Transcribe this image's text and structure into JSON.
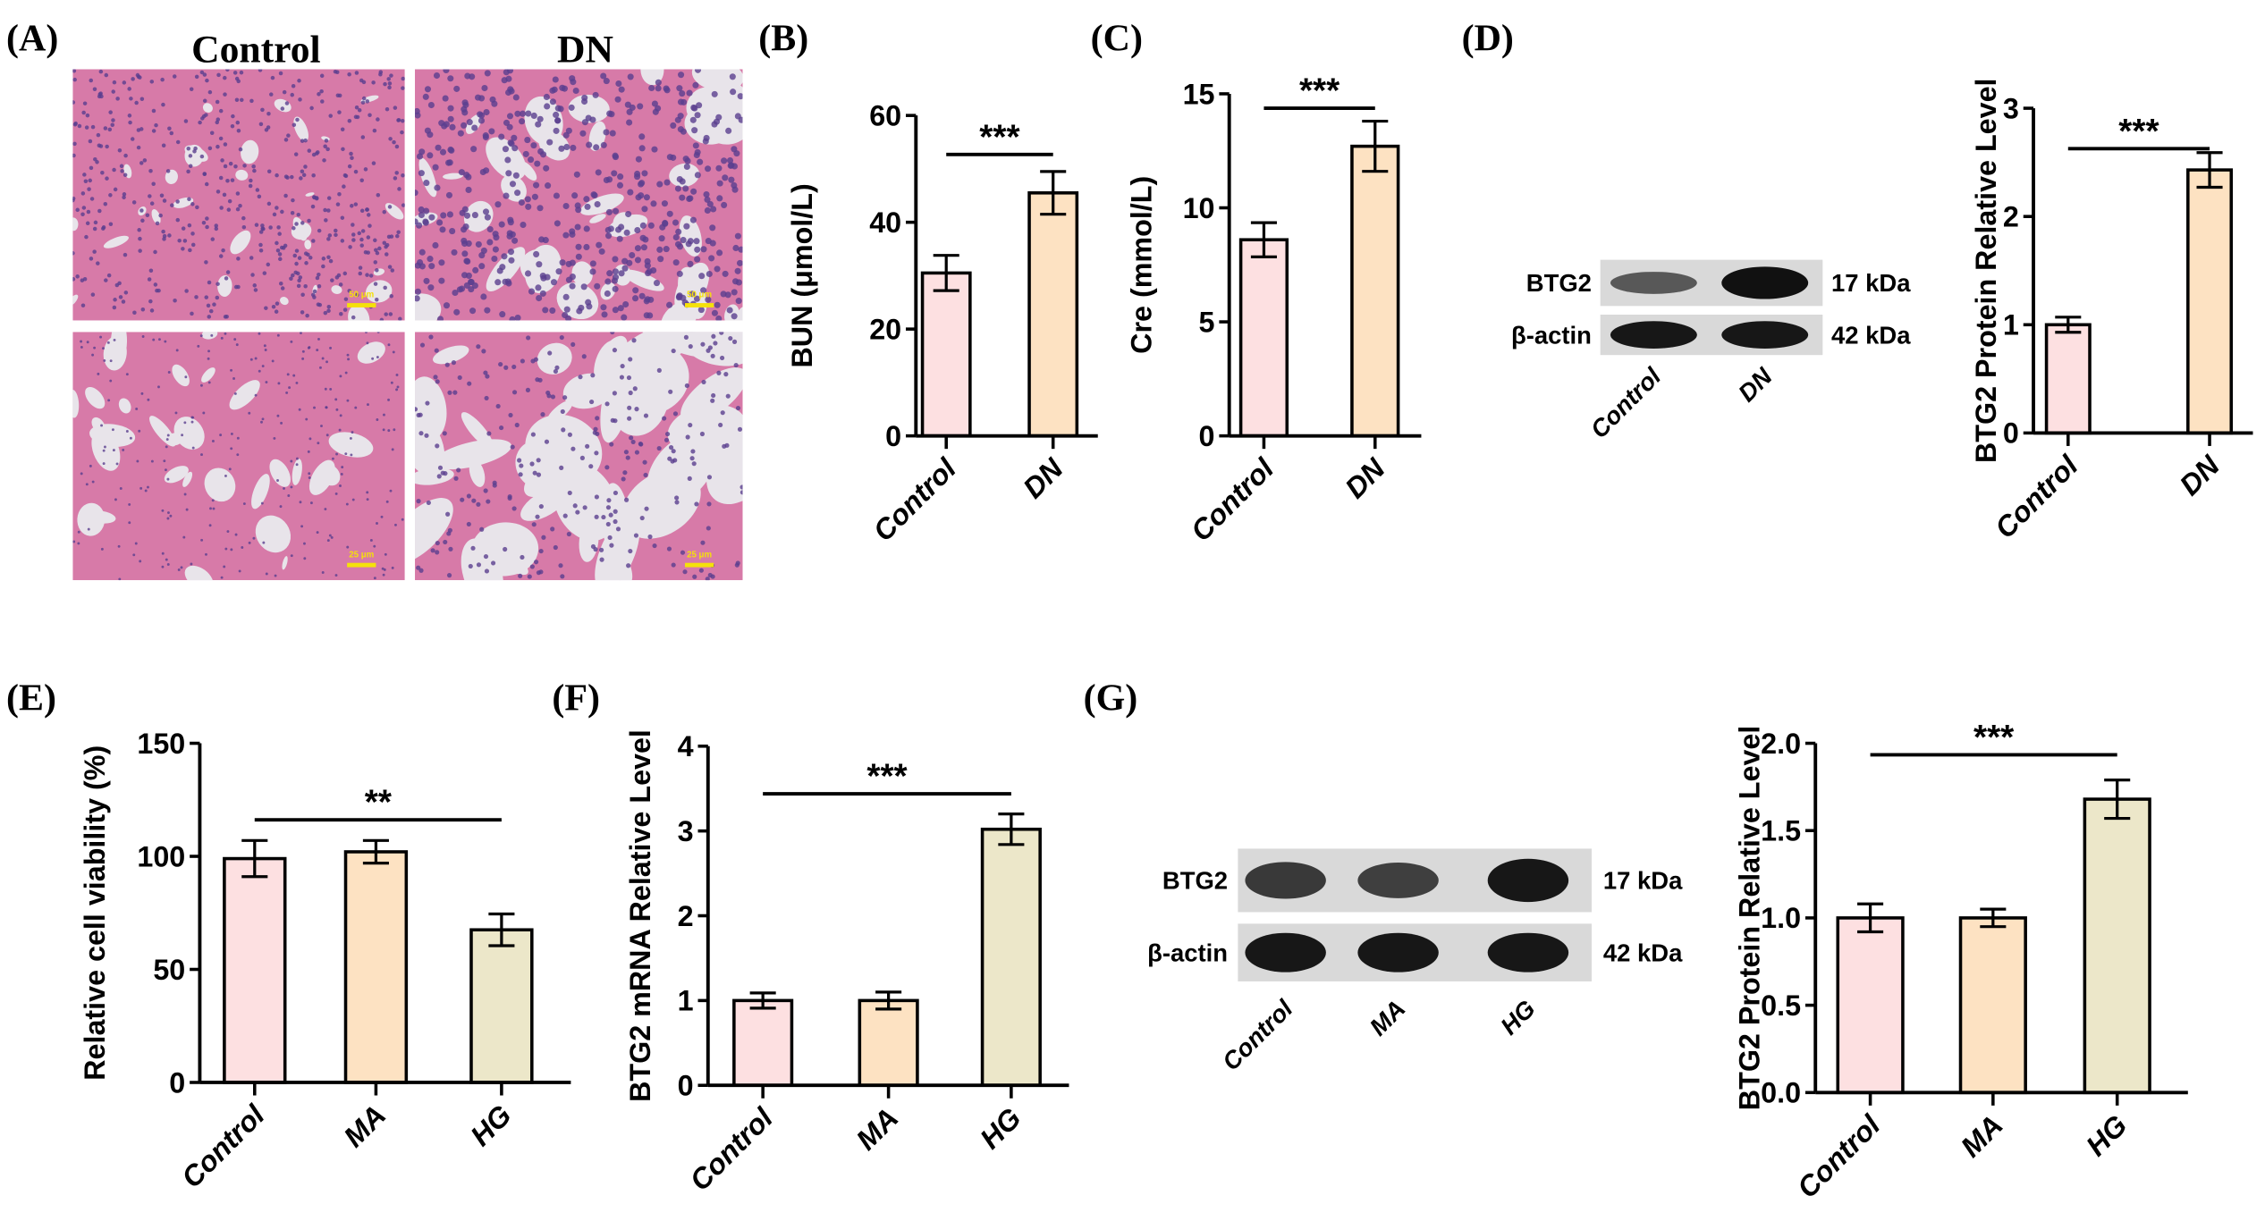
{
  "panel_labels": [
    "(A)",
    "(B)",
    "(C)",
    "(D)",
    "(E)",
    "(F)",
    "(G)"
  ],
  "histology": {
    "columns": [
      "Control",
      "DN"
    ],
    "scale_bars": [
      "50 μm",
      "50 μm",
      "25 μm",
      "25 μm"
    ]
  },
  "blots": [
    {
      "panel": "D",
      "rows": [
        {
          "label": "BTG2",
          "size": "17 kDa",
          "intensity": [
            0.45,
            1.0
          ]
        },
        {
          "label": "β-actin",
          "size": "42 kDa",
          "intensity": [
            0.95,
            0.95
          ]
        }
      ],
      "lanes": [
        "Control",
        "DN"
      ]
    },
    {
      "panel": "G",
      "rows": [
        {
          "label": "BTG2",
          "size": "17 kDa",
          "intensity": [
            0.7,
            0.65,
            0.95
          ]
        },
        {
          "label": "β-actin",
          "size": "42 kDa",
          "intensity": [
            0.95,
            0.95,
            0.95
          ]
        }
      ],
      "lanes": [
        "Control",
        "MA",
        "HG"
      ]
    }
  ],
  "colors": {
    "Control": "#fde0e1",
    "DN": "#fde2c2",
    "MA": "#fde2c2",
    "HG": "#ece7c9"
  },
  "chart_data": [
    {
      "panel": "B",
      "type": "bar",
      "categories": [
        "Control",
        "DN"
      ],
      "values": [
        30.5,
        45.5
      ],
      "errors": [
        3.3,
        4.0
      ],
      "ylabel": "BUN (μmol/L)",
      "ylim": [
        0,
        60
      ],
      "yticks": [
        "0",
        "20",
        "40",
        "60"
      ],
      "significance": {
        "from": 0,
        "to": 1,
        "label": "***"
      }
    },
    {
      "panel": "C",
      "type": "bar",
      "categories": [
        "Control",
        "DN"
      ],
      "values": [
        8.6,
        12.7
      ],
      "errors": [
        0.75,
        1.1
      ],
      "ylabel": "Cre (mmol/L)",
      "ylim": [
        0,
        15
      ],
      "yticks": [
        "0",
        "5",
        "10",
        "15"
      ],
      "significance": {
        "from": 0,
        "to": 1,
        "label": "***"
      }
    },
    {
      "panel": "D",
      "type": "bar",
      "categories": [
        "Control",
        "DN"
      ],
      "values": [
        1.0,
        2.43
      ],
      "errors": [
        0.07,
        0.16
      ],
      "ylabel": "BTG2 Protein Relative Level",
      "ylim": [
        0,
        3
      ],
      "yticks": [
        "0",
        "1",
        "2",
        "3"
      ],
      "significance": {
        "from": 0,
        "to": 1,
        "label": "***"
      }
    },
    {
      "panel": "E",
      "type": "bar",
      "categories": [
        "Control",
        "MA",
        "HG"
      ],
      "values": [
        99,
        102,
        67.5
      ],
      "errors": [
        8,
        5,
        7
      ],
      "ylabel": "Relative cell viability (%)",
      "ylim": [
        0,
        150
      ],
      "yticks": [
        "0",
        "50",
        "100",
        "150"
      ],
      "significance": {
        "from": 0,
        "to": 2,
        "label": "**"
      }
    },
    {
      "panel": "F",
      "type": "bar",
      "categories": [
        "Control",
        "MA",
        "HG"
      ],
      "values": [
        1.0,
        1.0,
        3.02
      ],
      "errors": [
        0.09,
        0.1,
        0.18
      ],
      "ylabel": "BTG2 mRNA Relative Level",
      "ylim": [
        0,
        4
      ],
      "yticks": [
        "0",
        "1",
        "2",
        "3",
        "4"
      ],
      "significance": {
        "from": 0,
        "to": 2,
        "label": "***"
      }
    },
    {
      "panel": "G",
      "type": "bar",
      "categories": [
        "Control",
        "MA",
        "HG"
      ],
      "values": [
        1.0,
        1.0,
        1.68
      ],
      "errors": [
        0.08,
        0.05,
        0.11
      ],
      "ylabel": "BTG2 Protein Relative Level",
      "ylim": [
        0,
        2
      ],
      "yticks": [
        "0.0",
        "0.5",
        "1.0",
        "1.5",
        "2.0"
      ],
      "significance": {
        "from": 0,
        "to": 2,
        "label": "***"
      }
    }
  ]
}
